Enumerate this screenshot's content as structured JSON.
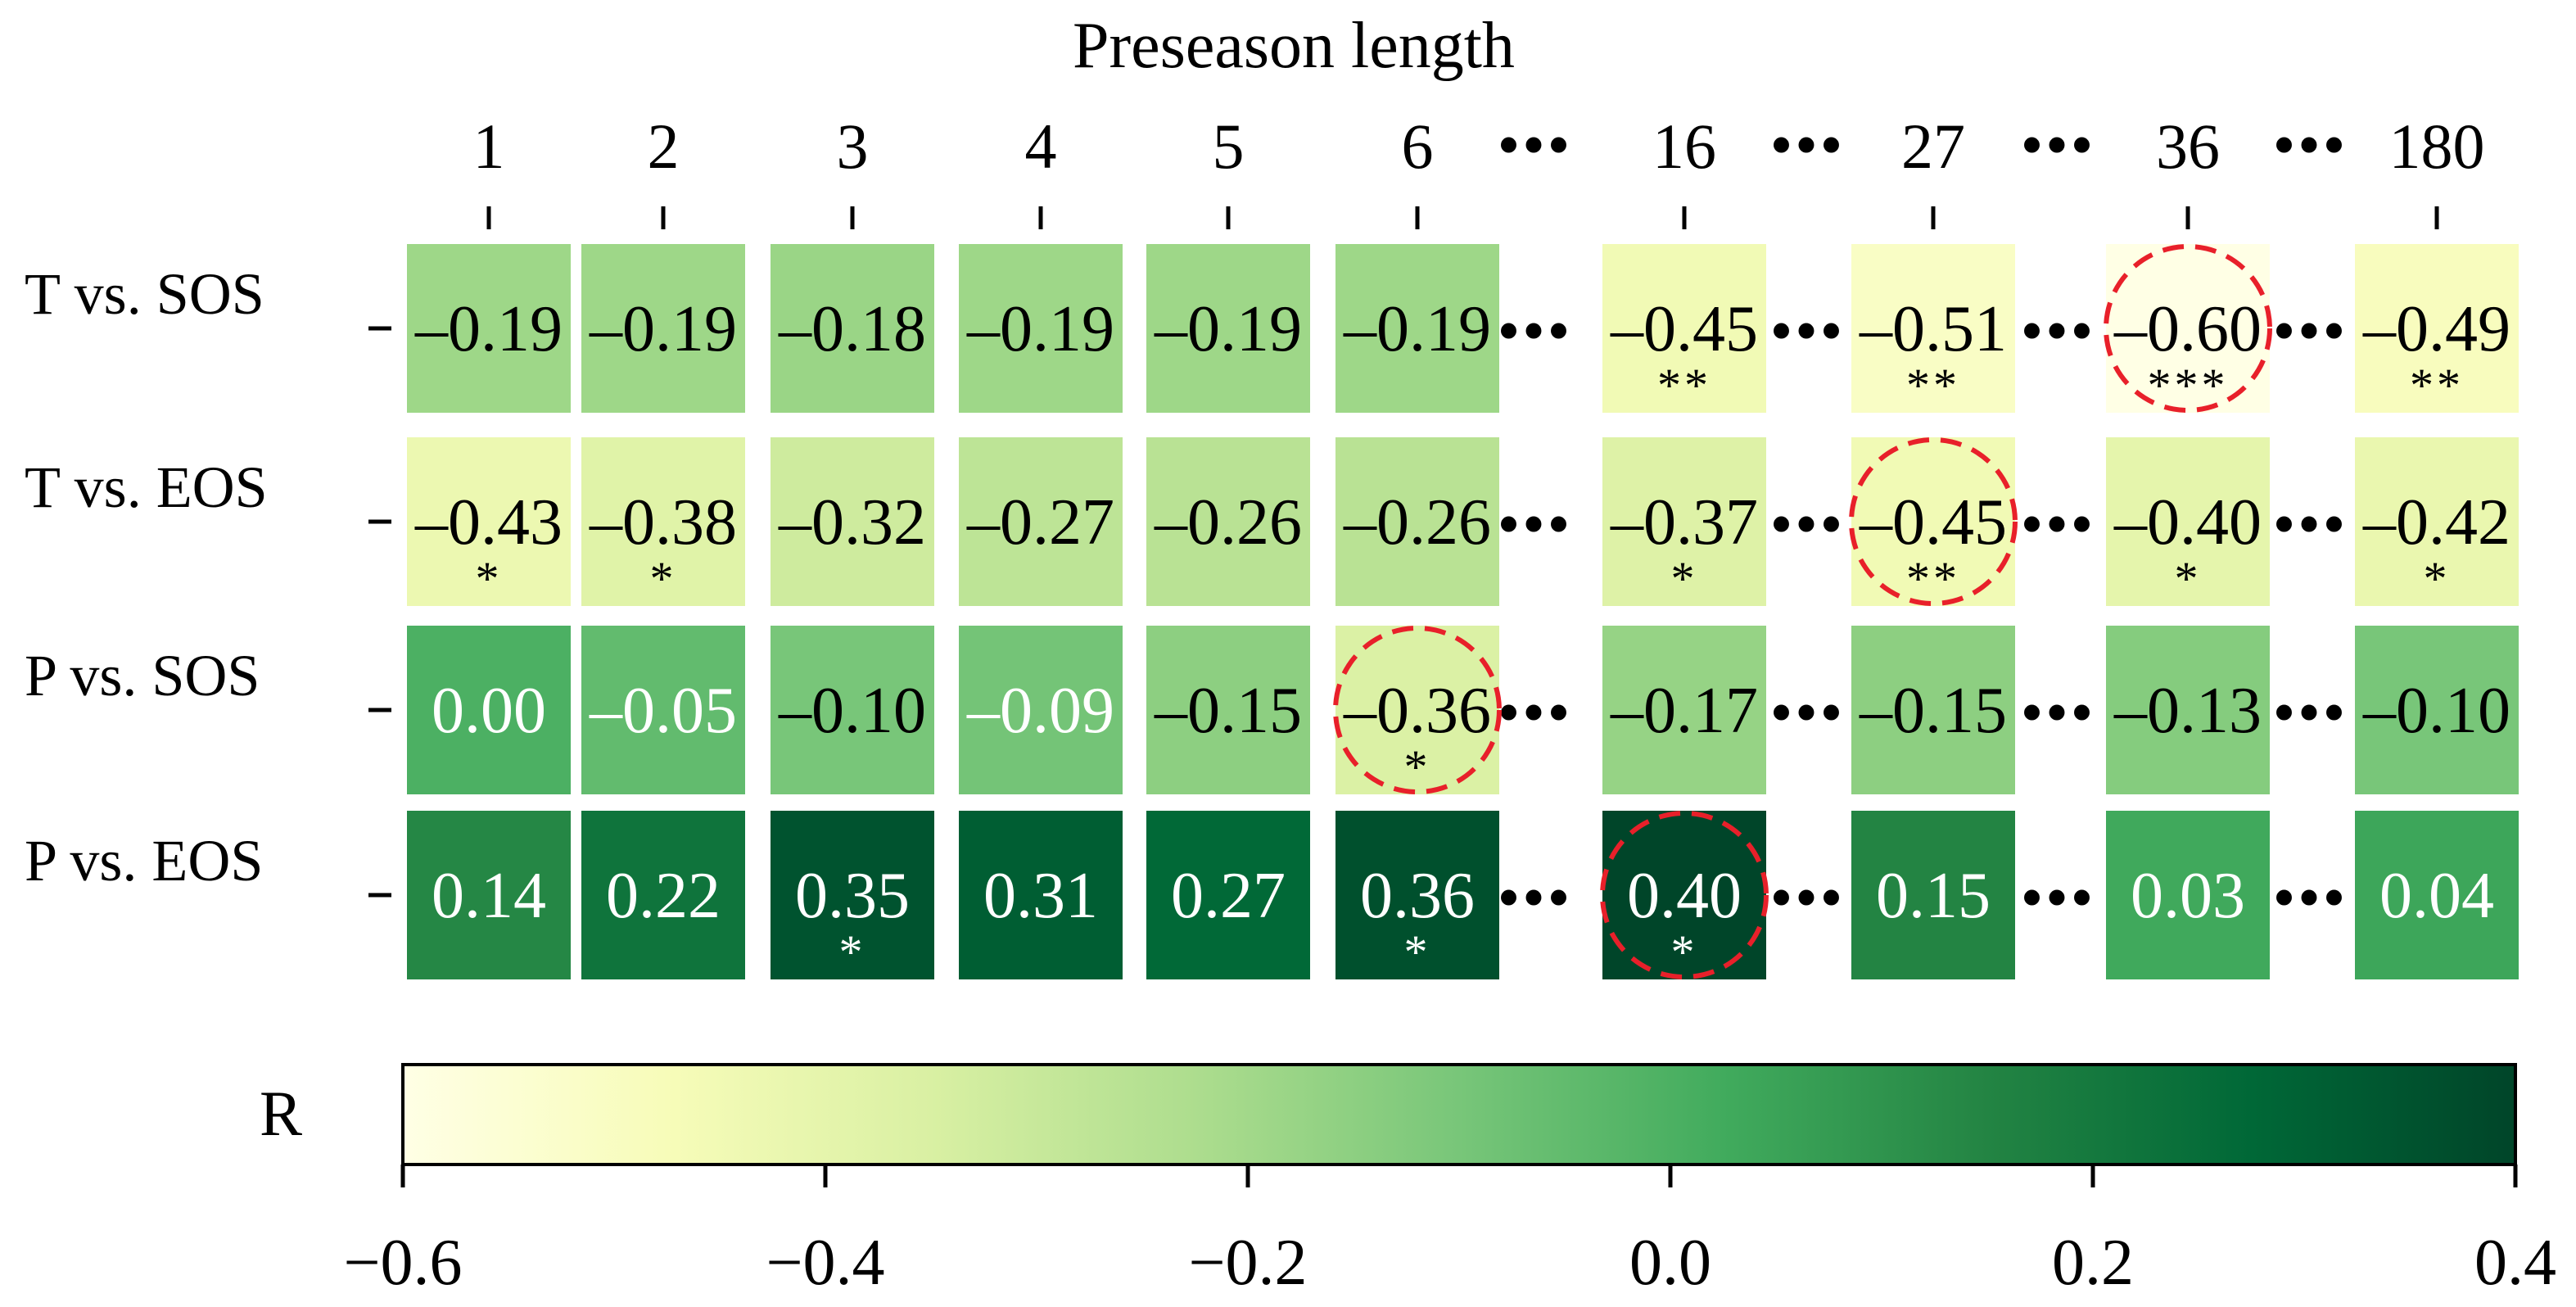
{
  "chart_data": {
    "type": "heatmap",
    "title": "Preseason length",
    "columns": [
      "1",
      "2",
      "3",
      "4",
      "5",
      "6",
      "16",
      "27",
      "36",
      "180"
    ],
    "ellipsis": "•••",
    "rows": [
      "T vs. SOS",
      "T vs. EOS",
      "P vs. SOS",
      "P vs. EOS"
    ],
    "values": [
      [
        -0.19,
        -0.19,
        -0.18,
        -0.19,
        -0.19,
        -0.19,
        -0.45,
        -0.51,
        -0.6,
        -0.49
      ],
      [
        -0.43,
        -0.38,
        -0.32,
        -0.27,
        -0.26,
        -0.26,
        -0.37,
        -0.45,
        -0.4,
        -0.42
      ],
      [
        0.0,
        -0.05,
        -0.1,
        -0.09,
        -0.15,
        -0.36,
        -0.17,
        -0.15,
        -0.13,
        -0.1
      ],
      [
        0.14,
        0.22,
        0.35,
        0.31,
        0.27,
        0.36,
        0.4,
        0.15,
        0.03,
        0.04
      ]
    ],
    "significance": [
      [
        "",
        "",
        "",
        "",
        "",
        "",
        "**",
        "**",
        "***",
        "**"
      ],
      [
        "*",
        "*",
        "",
        "",
        "",
        "",
        "*",
        "**",
        "*",
        "*"
      ],
      [
        "",
        "",
        "",
        "",
        "",
        "*",
        "",
        "",
        "",
        ""
      ],
      [
        "",
        "",
        "*",
        "",
        "",
        "*",
        "*",
        "",
        "",
        ""
      ]
    ],
    "highlighted": [
      {
        "row": 0,
        "col": 8
      },
      {
        "row": 1,
        "col": 7
      },
      {
        "row": 2,
        "col": 5
      },
      {
        "row": 3,
        "col": 6
      }
    ],
    "colorbar": {
      "label": "R",
      "vmin": -0.6,
      "vmax": 0.4,
      "ticks": [
        -0.6,
        -0.4,
        -0.2,
        0.0,
        0.2,
        0.4
      ],
      "tick_labels": [
        "−0.6",
        "−0.4",
        "−0.2",
        "0.0",
        "0.2",
        "0.4"
      ],
      "colormap": [
        "#ffffe5",
        "#f7fcb9",
        "#d9f0a3",
        "#addd8e",
        "#78c679",
        "#41ab5d",
        "#238443",
        "#006837",
        "#004529"
      ]
    },
    "highlight_color": "#e8202a"
  }
}
